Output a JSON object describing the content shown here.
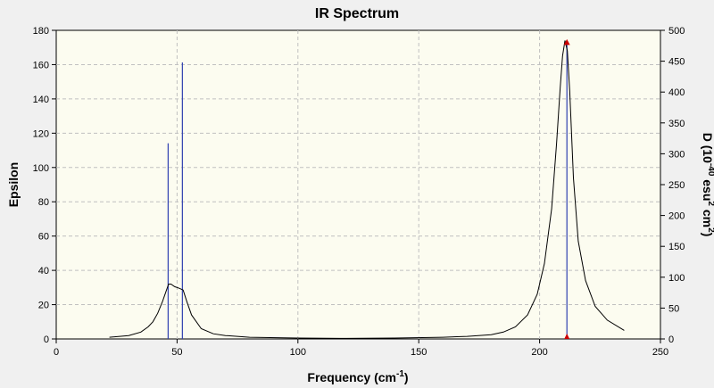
{
  "chart_data": {
    "type": "line",
    "title": "IR Spectrum",
    "xlabel": {
      "main": "Frequency (cm",
      "sup": "-1",
      "end": ")"
    },
    "ylabel_left": "Epsilon",
    "ylabel_right": {
      "p1": "D (10",
      "sup1": "-40",
      "p2": " esu",
      "sup2": "2",
      "p3": " cm",
      "sup3": "2",
      "p4": ")"
    },
    "xlim": [
      0,
      250
    ],
    "ylim_left": [
      0,
      180
    ],
    "ylim_right": [
      0,
      500
    ],
    "x_ticks": [
      0,
      50,
      100,
      150,
      200,
      250
    ],
    "y_left_ticks": [
      0,
      20,
      40,
      60,
      80,
      100,
      120,
      140,
      160,
      180
    ],
    "y_right_ticks": [
      0,
      50,
      100,
      150,
      200,
      250,
      300,
      350,
      400,
      450,
      500
    ],
    "grid": true,
    "series": [
      {
        "kind": "spectrum-curve",
        "axis": "left",
        "color": "#000000",
        "x": [
          22,
          30,
          35,
          38,
          40,
          42,
          44,
          45.5,
          46.5,
          47.5,
          49,
          51,
          52.5,
          54,
          56,
          60,
          65,
          70,
          80,
          100,
          120,
          140,
          160,
          170,
          180,
          185,
          190,
          195,
          199,
          202,
          205,
          207,
          208.5,
          209.5,
          210.5,
          211.5,
          212.5,
          214,
          216,
          219,
          223,
          228,
          235
        ],
        "y": [
          1,
          2,
          4,
          7,
          10,
          15,
          22,
          28,
          32,
          32,
          30.5,
          29.5,
          28.5,
          22,
          14,
          6,
          3,
          2,
          1,
          0.5,
          0.3,
          0.5,
          1,
          1.5,
          2.5,
          4,
          7,
          14,
          26,
          44,
          76,
          114,
          146,
          165,
          174,
          168,
          144,
          94,
          57,
          34,
          19,
          11,
          5
        ]
      },
      {
        "kind": "stick-lines",
        "axis": "right",
        "color": "#3040b0",
        "x": [
          46.3,
          52.2,
          211.3
        ],
        "values": [
          317,
          448,
          480
        ]
      }
    ],
    "peak_marker": {
      "x": 211.3,
      "value": 480,
      "color": "#cc0000"
    }
  }
}
